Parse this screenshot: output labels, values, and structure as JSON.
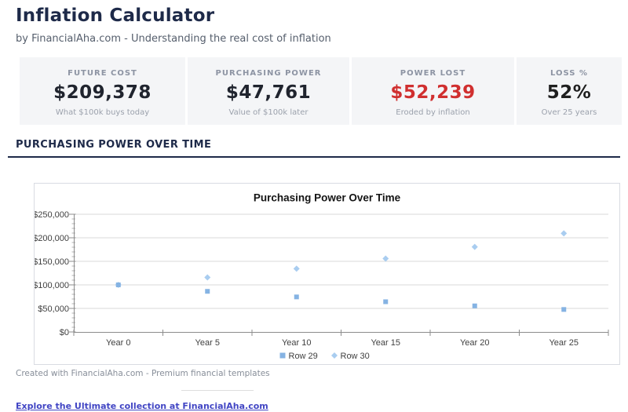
{
  "page": {
    "title": "Inflation Calculator",
    "subtitle": "by FinancialAha.com - Understanding the real cost of inflation"
  },
  "stats": [
    {
      "label": "FUTURE COST",
      "value": "$209,378",
      "sub": "What $100k buys today",
      "value_color": "#20242e"
    },
    {
      "label": "PURCHASING POWER",
      "value": "$47,761",
      "sub": "Value of $100k later",
      "value_color": "#20242e"
    },
    {
      "label": "POWER LOST",
      "value": "$52,239",
      "sub": "Eroded by inflation",
      "value_color": "#d02f2f"
    },
    {
      "label": "LOSS %",
      "value": "52%",
      "sub": "Over 25 years",
      "value_color": "#1f1f1f"
    }
  ],
  "section": {
    "heading": "PURCHASING POWER OVER TIME"
  },
  "chart_data": {
    "type": "scatter",
    "title": "Purchasing Power Over Time",
    "categories": [
      "Year 0",
      "Year 5",
      "Year 10",
      "Year 15",
      "Year 20",
      "Year 25"
    ],
    "series": [
      {
        "name": "Row 29",
        "marker": "square",
        "color": "#85b3e3",
        "values": [
          100000,
          86261,
          74409,
          64186,
          55368,
          47761
        ]
      },
      {
        "name": "Row 30",
        "marker": "diamond",
        "color": "#a9cdf0",
        "values": [
          100000,
          115927,
          134392,
          155797,
          180611,
          209378
        ]
      }
    ],
    "ylim": [
      0,
      250000
    ],
    "ytick_step": 50000,
    "ytick_minor": 10000,
    "ytick_labels": [
      "$0",
      "$50,000",
      "$100,000",
      "$150,000",
      "$200,000",
      "$250,000"
    ],
    "grid": true,
    "legend_position": "bottom",
    "axis_color": "#8c8c8c",
    "grid_color": "#d9d9d9"
  },
  "footer": {
    "credit": "Created with FinancialAha.com - Premium financial templates",
    "link": "Explore the Ultimate collection at FinancialAha.com"
  }
}
